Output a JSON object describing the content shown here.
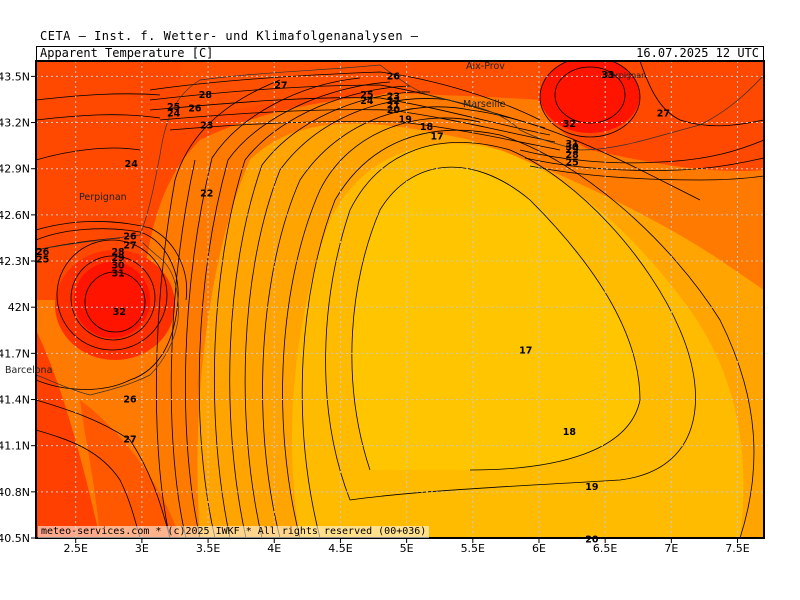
{
  "header": {
    "organization": "CETA — Inst. f. Wetter- und Klimafolgenanalysen —",
    "map_title": "Apparent Temperature [C]",
    "valid_time": "16.07.2025 12 UTC"
  },
  "footer": {
    "credit": "meteo-services.com * (c)2025 IWKF * All rights reserved (00+036)"
  },
  "axes": {
    "lat_labels": [
      "43.5N",
      "43.2N",
      "42.9N",
      "42.6N",
      "42.3N",
      "42N",
      "41.7N",
      "41.4N",
      "41.1N",
      "40.8N",
      "40.5N"
    ],
    "lon_labels": [
      "2.5E",
      "3E",
      "3.5E",
      "4E",
      "4.5E",
      "5E",
      "5.5E",
      "6E",
      "6.5E",
      "7E",
      "7.5E"
    ]
  },
  "cities": {
    "aix": "Aix-Prov",
    "marseille": "Marseille",
    "perpignan_west": "Perpignan",
    "barcelona": "Barcelona",
    "perpignan_east": "Perpignan"
  },
  "contour_labels": [
    {
      "t": "26",
      "lon": 4.9,
      "lat": 43.5
    },
    {
      "t": "27",
      "lon": 4.05,
      "lat": 43.44
    },
    {
      "t": "28",
      "lon": 3.48,
      "lat": 43.38
    },
    {
      "t": "25",
      "lon": 3.24,
      "lat": 43.3
    },
    {
      "t": "26",
      "lon": 3.4,
      "lat": 43.29
    },
    {
      "t": "24",
      "lon": 3.24,
      "lat": 43.26
    },
    {
      "t": "23",
      "lon": 3.49,
      "lat": 43.18
    },
    {
      "t": "25",
      "lon": 4.7,
      "lat": 43.38
    },
    {
      "t": "24",
      "lon": 4.7,
      "lat": 43.34
    },
    {
      "t": "23",
      "lon": 4.9,
      "lat": 43.37
    },
    {
      "t": "22",
      "lon": 4.9,
      "lat": 43.34
    },
    {
      "t": "21",
      "lon": 4.9,
      "lat": 43.31
    },
    {
      "t": "20",
      "lon": 4.9,
      "lat": 43.28
    },
    {
      "t": "19",
      "lon": 4.99,
      "lat": 43.22
    },
    {
      "t": "18",
      "lon": 5.15,
      "lat": 43.17
    },
    {
      "t": "17",
      "lon": 5.23,
      "lat": 43.11
    },
    {
      "t": "24",
      "lon": 2.92,
      "lat": 42.93
    },
    {
      "t": "22",
      "lon": 3.49,
      "lat": 42.74
    },
    {
      "t": "26",
      "lon": 2.91,
      "lat": 42.46
    },
    {
      "t": "27",
      "lon": 2.91,
      "lat": 42.4
    },
    {
      "t": "28",
      "lon": 2.82,
      "lat": 42.36
    },
    {
      "t": "29",
      "lon": 2.82,
      "lat": 42.32
    },
    {
      "t": "30",
      "lon": 2.82,
      "lat": 42.27
    },
    {
      "t": "31",
      "lon": 2.82,
      "lat": 42.22
    },
    {
      "t": "32",
      "lon": 2.83,
      "lat": 41.97
    },
    {
      "t": "26",
      "lon": 2.25,
      "lat": 42.36
    },
    {
      "t": "25",
      "lon": 2.25,
      "lat": 42.31
    },
    {
      "t": "26",
      "lon": 2.91,
      "lat": 41.4
    },
    {
      "t": "27",
      "lon": 2.91,
      "lat": 41.14
    },
    {
      "t": "17",
      "lon": 5.9,
      "lat": 41.72
    },
    {
      "t": "18",
      "lon": 6.23,
      "lat": 41.19
    },
    {
      "t": "19",
      "lon": 6.4,
      "lat": 40.83
    },
    {
      "t": "32",
      "lon": 6.23,
      "lat": 43.19
    },
    {
      "t": "31",
      "lon": 6.25,
      "lat": 43.06
    },
    {
      "t": "30",
      "lon": 6.25,
      "lat": 43.04
    },
    {
      "t": "29",
      "lon": 6.25,
      "lat": 43.02
    },
    {
      "t": "28",
      "lon": 6.25,
      "lat": 42.99
    },
    {
      "t": "25",
      "lon": 6.25,
      "lat": 42.94
    },
    {
      "t": "27",
      "lon": 6.94,
      "lat": 43.26
    },
    {
      "t": "33",
      "lon": 6.52,
      "lat": 43.51
    },
    {
      "t": "20",
      "lon": 6.4,
      "lat": 40.49
    }
  ],
  "colors": {
    "shade_red": "#ff1c00",
    "shade_redorange": "#ff4800",
    "shade_orange": "#ff7a00",
    "shade_amber": "#ffa400",
    "shade_yellow": "#ffc200",
    "contour": "#000000",
    "grid": "#c8c8c8"
  }
}
